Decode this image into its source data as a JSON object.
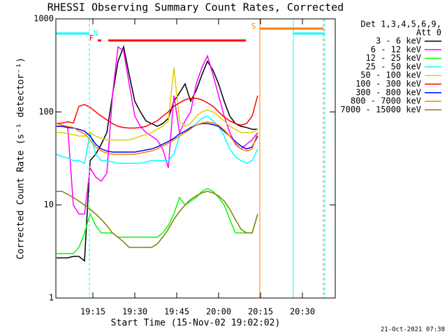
{
  "chart_data": {
    "type": "line",
    "title": "RHESSI Observing Summary Count Rates, Corrected",
    "x_label": "Start Time (15-Nov-02 19:02:02)",
    "y_label": "Corrected Count Rate (s⁻¹ detector⁻¹)",
    "footer": "21-Oct-2021 07:38",
    "legend_header": [
      "Det 1,3,4,5,6,9,",
      "Att 0"
    ],
    "log_y": true,
    "xlim": [
      61.75,
      161.75
    ],
    "ylim": [
      1,
      1000
    ],
    "xticks": [
      {
        "value": 75,
        "label": "19:15"
      },
      {
        "value": 90,
        "label": "19:30"
      },
      {
        "value": 105,
        "label": "19:45"
      },
      {
        "value": 120,
        "label": "20:00"
      },
      {
        "value": 135,
        "label": "20:15"
      },
      {
        "value": 150,
        "label": "20:30"
      }
    ],
    "yticks": [
      1,
      10,
      100,
      1000
    ],
    "x": [
      62,
      64,
      66,
      68,
      70,
      72,
      74,
      76,
      78,
      80,
      82,
      84,
      86,
      88,
      90,
      92,
      94,
      96,
      98,
      100,
      102,
      104,
      106,
      108,
      110,
      112,
      114,
      116,
      118,
      120,
      122,
      124,
      126,
      128,
      130,
      132,
      134
    ],
    "series": [
      {
        "name": "3 - 6 keV",
        "color": "#000000",
        "values": [
          2.7,
          2.7,
          2.7,
          2.8,
          2.8,
          2.5,
          30,
          35,
          45,
          60,
          150,
          350,
          500,
          250,
          130,
          100,
          80,
          75,
          70,
          75,
          85,
          130,
          160,
          200,
          130,
          170,
          250,
          350,
          280,
          200,
          130,
          90,
          75,
          70,
          68,
          65,
          65
        ]
      },
      {
        "name": "6 - 12 keV",
        "color": "#ff00ff",
        "values": [
          70,
          70,
          68,
          10,
          8,
          8,
          25,
          20,
          18,
          22,
          150,
          500,
          450,
          200,
          90,
          70,
          60,
          55,
          50,
          40,
          25,
          150,
          60,
          80,
          100,
          200,
          300,
          400,
          250,
          150,
          90,
          60,
          45,
          40,
          45,
          50,
          60
        ]
      },
      {
        "name": "12 - 25 keV",
        "color": "#00ff00",
        "values": [
          3,
          3,
          3,
          3,
          3.5,
          5,
          8,
          6,
          5,
          5,
          5,
          4.5,
          4.5,
          4.5,
          4.5,
          4.5,
          4.5,
          4.5,
          4.5,
          5,
          6,
          8,
          12,
          10,
          11,
          12,
          14,
          15,
          14,
          12,
          10,
          7,
          5,
          5,
          5,
          5,
          8
        ]
      },
      {
        "name": "25 - 50 keV",
        "color": "#00ffff",
        "values": [
          35,
          33,
          32,
          30,
          30,
          28,
          60,
          35,
          30,
          30,
          29,
          28,
          28,
          28,
          28,
          28,
          29,
          30,
          30,
          30,
          30,
          35,
          55,
          60,
          65,
          75,
          85,
          90,
          80,
          70,
          55,
          40,
          33,
          30,
          28,
          30,
          40
        ]
      },
      {
        "name": "50 - 100 keV",
        "color": "#e0d000",
        "values": [
          60,
          60,
          58,
          57,
          55,
          55,
          60,
          55,
          52,
          50,
          50,
          50,
          50,
          50,
          52,
          55,
          57,
          60,
          65,
          70,
          80,
          300,
          80,
          70,
          75,
          90,
          100,
          105,
          100,
          90,
          80,
          70,
          65,
          60,
          60,
          60,
          65
        ]
      },
      {
        "name": "100 - 300 keV",
        "color": "#ff0000",
        "values": [
          75,
          76,
          78,
          76,
          115,
          120,
          112,
          100,
          90,
          82,
          75,
          70,
          68,
          67,
          67,
          68,
          70,
          75,
          80,
          90,
          100,
          115,
          125,
          135,
          140,
          140,
          135,
          125,
          115,
          100,
          88,
          80,
          75,
          72,
          75,
          90,
          150
        ]
      },
      {
        "name": "300 - 800 keV",
        "color": "#0000ff",
        "values": [
          70,
          70,
          68,
          67,
          65,
          62,
          55,
          45,
          40,
          38,
          37,
          37,
          37,
          37,
          37,
          38,
          39,
          40,
          42,
          45,
          48,
          52,
          58,
          62,
          68,
          72,
          75,
          75,
          73,
          70,
          62,
          55,
          48,
          43,
          40,
          42,
          55
        ]
      },
      {
        "name": "800 - 7000 keV",
        "color": "#ff8000",
        "values": [
          75,
          72,
          70,
          68,
          62,
          58,
          50,
          42,
          38,
          36,
          35,
          35,
          35,
          35,
          35,
          36,
          37,
          38,
          40,
          43,
          46,
          50,
          55,
          60,
          66,
          72,
          76,
          78,
          76,
          72,
          64,
          55,
          46,
          40,
          38,
          40,
          60
        ]
      },
      {
        "name": "7000 - 15000 keV",
        "color": "#808000",
        "values": [
          14,
          14,
          13,
          12,
          11,
          10,
          9,
          8,
          7,
          6,
          5,
          4.5,
          4,
          3.5,
          3.5,
          3.5,
          3.5,
          3.5,
          3.8,
          4.5,
          5.5,
          7,
          8.5,
          10,
          11.5,
          12.5,
          13.5,
          14,
          13.5,
          12.5,
          11,
          9,
          7,
          5.5,
          5,
          5,
          8
        ]
      }
    ],
    "flags": [
      {
        "label": "N",
        "color": "#00ffff",
        "spans": [
          [
            61.75,
            73.75
          ],
          [
            146.75,
            158
          ]
        ]
      },
      {
        "label": "S",
        "color": "#ff8000",
        "spans": [
          [
            134.75,
            157.5
          ]
        ]
      },
      {
        "label": "F",
        "color": "#ff0000",
        "spans": [
          [
            76.75,
            78
          ],
          [
            80.5,
            129.75
          ]
        ]
      }
    ],
    "vlines": [
      {
        "x": 73.75,
        "color": "#00ffff",
        "dashed": true
      },
      {
        "x": 134.75,
        "color": "#ff8000",
        "dashed": false
      },
      {
        "x": 146.75,
        "color": "#00ffff",
        "dashed": false
      },
      {
        "x": 157.5,
        "color": "#ff8000",
        "dashed": true
      },
      {
        "x": 158,
        "color": "#00ffff",
        "dashed": true
      }
    ]
  }
}
